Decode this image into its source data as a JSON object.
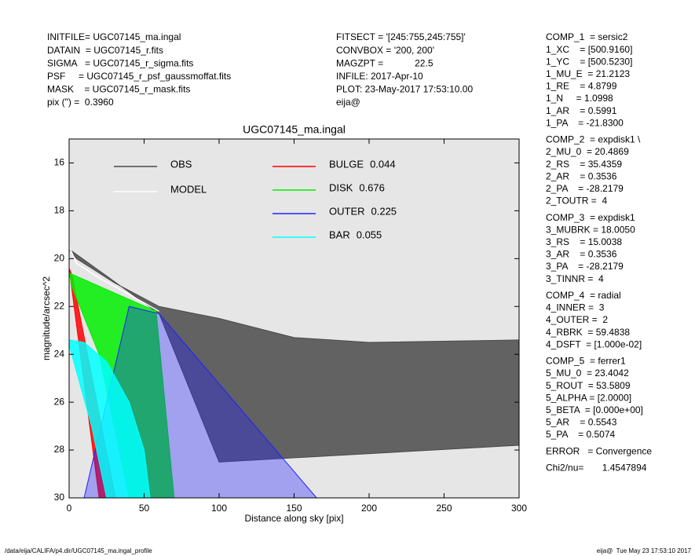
{
  "chart_data": {
    "type": "area",
    "title": "UGC07145_ma.ingal",
    "x_label": "Distance along sky [pix]",
    "y_label": "magnitude/arcsec^2",
    "xlim": [
      0,
      300
    ],
    "xticks": [
      0,
      50,
      100,
      150,
      200,
      250,
      300
    ],
    "ylim": [
      30,
      15
    ],
    "yticks": [
      16,
      18,
      20,
      22,
      24,
      26,
      28,
      30
    ],
    "inverted_y": true,
    "background": "#e6e6e6",
    "series": [
      {
        "name": "OBS",
        "color": "#4a4a4a",
        "legend_color": "#999999",
        "x": [
          0,
          5,
          30,
          60,
          100,
          150,
          200,
          300,
          300,
          100,
          60
        ],
        "values": [
          19.6,
          20.0,
          21.0,
          22.0,
          22.5,
          23.3,
          23.5,
          23.4,
          27.8,
          28.5,
          22.3
        ]
      },
      {
        "name": "MODEL",
        "color": "#ffffff",
        "legend_color": "#ffffff",
        "line": true,
        "x": [
          0,
          5,
          20,
          40,
          60
        ],
        "values": [
          19.5,
          20.2,
          20.8,
          21.5,
          22.2
        ]
      },
      {
        "name": "BULGE",
        "fraction": 0.044,
        "color": "#ff0000",
        "legend_color": "#ff0000",
        "x": [
          0,
          2,
          31,
          20
        ],
        "values": [
          20.4,
          20.7,
          30,
          30
        ]
      },
      {
        "name": "DISK",
        "fraction": 0.676,
        "color": "#00ee00",
        "legend_color": "#00dd00",
        "x": [
          0,
          58,
          70,
          40,
          20,
          2
        ],
        "values": [
          20.6,
          22.2,
          30,
          30,
          24,
          21.2
        ]
      },
      {
        "name": "OUTER",
        "fraction": 0.225,
        "color": "#2020ff",
        "legend_color": "#0000cc",
        "x": [
          40,
          60,
          165,
          10
        ],
        "values": [
          22.0,
          22.3,
          30,
          30
        ]
      },
      {
        "name": "BAR",
        "fraction": 0.055,
        "color": "#00ffff",
        "legend_color": "#00e0e0",
        "x": [
          0,
          10,
          25,
          40,
          50,
          54,
          25,
          15,
          0
        ],
        "values": [
          23.4,
          23.5,
          24.3,
          26,
          28,
          30,
          30,
          27,
          23.6
        ]
      }
    ],
    "info_left": [
      "INITFILE= UGC07145_ma.ingal",
      "DATAIN  = UGC07145_r.fits",
      "SIGMA   = UGC07145_r_sigma.fits",
      "PSF     = UGC07145_r_psf_gaussmoffat.fits",
      "MASK    = UGC07145_r_mask.fits",
      "pix (\") =  0.3960"
    ],
    "info_middle": [
      "FITSECT = '[245:755,245:755]'",
      "CONVBOX = '200, 200'",
      "MAGZPT =            22.5",
      "INFILE: 2017-Apr-10",
      "PLOT: 23-May-2017 17:53:10.00",
      "eija@"
    ],
    "params": [
      [
        "COMP_1  = sersic2",
        "1_XC    = [500.9160]",
        "1_YC    = [500.5230]",
        "1_MU_E  = 21.2123",
        "1_RE    = 4.8799",
        "1_N     = 1.0998",
        "1_AR    = 0.5991",
        "1_PA    = -21.8300"
      ],
      [
        "COMP_2  = expdisk1 \\",
        "2_MU_0  = 20.4869",
        "2_RS    = 35.4359",
        "2_AR    = 0.3536",
        "2_PA    = -28.2179",
        "2_TOUTR =  4"
      ],
      [
        "COMP_3  = expdisk1",
        "3_MUBRK = 18.0050",
        "3_RS    = 15.0038",
        "3_AR    = 0.3536",
        "3_PA    = -28.2179",
        "3_TINNR =  4"
      ],
      [
        "COMP_4  = radial",
        "4_INNER =  3",
        "4_OUTER =  2",
        "4_RBRK  = 59.4838",
        "4_DSFT  = [1.000e-02]"
      ],
      [
        "COMP_5  = ferrer1",
        "5_MU_0  = 23.4042",
        "5_ROUT  = 53.5809",
        "5_ALPHA = [2.0000]",
        "5_BETA  = [0.000e+00]",
        "5_AR    = 0.5543",
        "5_PA    = 0.5074"
      ],
      [
        "ERROR   = Convergence"
      ],
      [
        "Chi2/nu=       1.4547894"
      ]
    ],
    "footer_left": "/data/eija/CALIFA/p4.dir/UGC07145_ma.ingal_profile",
    "footer_right": "eija@  Tue May 23 17:53:10 2017"
  }
}
